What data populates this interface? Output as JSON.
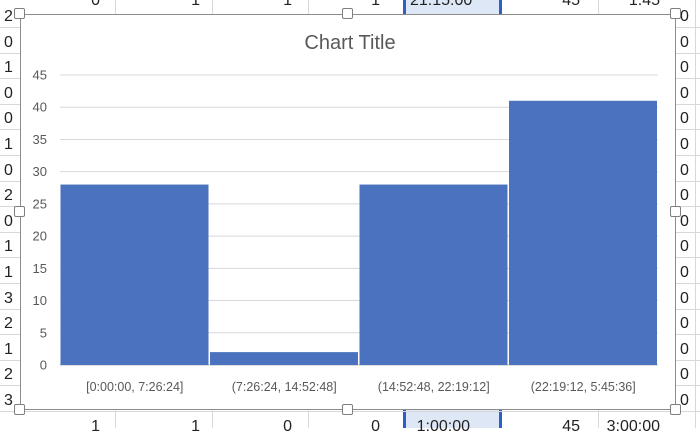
{
  "sheet": {
    "left_col_values": [
      "2",
      "0",
      "1",
      "0",
      "0",
      "1",
      "0",
      "2",
      "0",
      "1",
      "1",
      "3",
      "2",
      "1",
      "2",
      "3"
    ],
    "right_col_values": [
      "0",
      "0",
      "0",
      "0",
      "0",
      "0",
      "0",
      "0",
      "0",
      "0",
      "0",
      "0",
      "0",
      "0",
      "0",
      "0"
    ],
    "top_row_values": [
      "0",
      "1",
      "1",
      "1",
      "21:15:00",
      "45",
      "1:45"
    ],
    "bottom_row_values": [
      "1",
      "1",
      "0",
      "0",
      "1:00:00",
      "45",
      "3:00:00"
    ]
  },
  "chart_data": {
    "type": "bar",
    "title": "Chart Title",
    "categories": [
      "[0:00:00, 7:26:24]",
      "(7:26:24, 14:52:48]",
      "(14:52:48, 22:19:12]",
      "(22:19:12, 5:45:36]"
    ],
    "values": [
      28,
      2,
      28,
      41
    ],
    "ylim": [
      0,
      45
    ],
    "yticks": [
      0,
      5,
      10,
      15,
      20,
      25,
      30,
      35,
      40,
      45
    ],
    "grid": true,
    "bar_color": "#4a72bf",
    "selection_color": "#2d5fc4"
  }
}
